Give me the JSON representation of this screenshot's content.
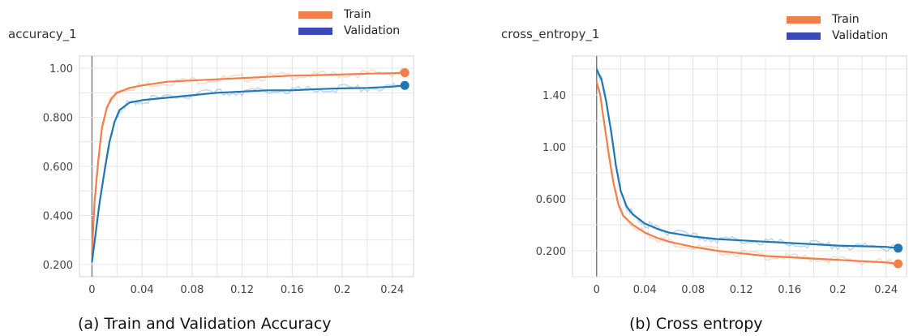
{
  "chart_data": [
    {
      "type": "line",
      "title": "accuracy_1",
      "caption": "(a) Train and Validation Accuracy",
      "legend_position": "top-right",
      "grid": true,
      "xlim": [
        -0.01,
        0.257
      ],
      "ylim": [
        0.15,
        1.05
      ],
      "x_ticks": [
        0,
        0.04,
        0.08,
        0.12,
        0.16,
        0.2,
        0.24
      ],
      "x_tick_labels": [
        "0",
        "0.04",
        "0.08",
        "0.12",
        "0.16",
        "0.2",
        "0.24"
      ],
      "y_ticks": [
        0.2,
        0.4,
        0.6,
        0.8,
        1.0
      ],
      "y_tick_labels": [
        "0.200",
        "0.400",
        "0.600",
        "0.800",
        "1.00"
      ],
      "series": [
        {
          "name": "Train",
          "color": "#f07f4a",
          "x": [
            0,
            0.002,
            0.005,
            0.008,
            0.012,
            0.016,
            0.02,
            0.03,
            0.04,
            0.06,
            0.08,
            0.1,
            0.12,
            0.14,
            0.16,
            0.18,
            0.2,
            0.22,
            0.24,
            0.25
          ],
          "y": [
            0.24,
            0.45,
            0.62,
            0.76,
            0.84,
            0.88,
            0.9,
            0.92,
            0.93,
            0.945,
            0.95,
            0.955,
            0.96,
            0.965,
            0.97,
            0.972,
            0.975,
            0.978,
            0.98,
            0.982
          ]
        },
        {
          "name": "Validation",
          "color": "#1f77b4",
          "x": [
            0,
            0.003,
            0.006,
            0.01,
            0.014,
            0.018,
            0.022,
            0.03,
            0.04,
            0.06,
            0.08,
            0.1,
            0.12,
            0.14,
            0.16,
            0.18,
            0.2,
            0.22,
            0.24,
            0.25
          ],
          "y": [
            0.21,
            0.33,
            0.45,
            0.58,
            0.7,
            0.78,
            0.83,
            0.86,
            0.87,
            0.88,
            0.89,
            0.9,
            0.905,
            0.91,
            0.91,
            0.915,
            0.918,
            0.92,
            0.925,
            0.93
          ]
        }
      ]
    },
    {
      "type": "line",
      "title": "cross_entropy_1",
      "caption": "(b) Cross entropy",
      "legend_position": "top-right",
      "grid": true,
      "xlim": [
        -0.02,
        0.257
      ],
      "ylim": [
        0.0,
        1.7
      ],
      "x_ticks": [
        0,
        0.04,
        0.08,
        0.12,
        0.16,
        0.2,
        0.24
      ],
      "x_tick_labels": [
        "0",
        "0.04",
        "0.08",
        "0.12",
        "0.16",
        "0.2",
        "0.24"
      ],
      "y_ticks": [
        0.2,
        0.6,
        1.0,
        1.4
      ],
      "y_tick_labels": [
        "0.200",
        "0.600",
        "1.00",
        "1.40"
      ],
      "series": [
        {
          "name": "Train",
          "color": "#f07f4a",
          "x": [
            0,
            0.003,
            0.006,
            0.01,
            0.014,
            0.018,
            0.022,
            0.03,
            0.04,
            0.05,
            0.06,
            0.08,
            0.1,
            0.12,
            0.14,
            0.16,
            0.18,
            0.2,
            0.22,
            0.24,
            0.25
          ],
          "y": [
            1.5,
            1.4,
            1.2,
            0.95,
            0.72,
            0.56,
            0.47,
            0.4,
            0.34,
            0.3,
            0.27,
            0.23,
            0.2,
            0.18,
            0.16,
            0.15,
            0.14,
            0.13,
            0.12,
            0.11,
            0.1
          ]
        },
        {
          "name": "Validation",
          "color": "#1f77b4",
          "x": [
            0,
            0.004,
            0.008,
            0.012,
            0.016,
            0.02,
            0.025,
            0.03,
            0.04,
            0.05,
            0.06,
            0.08,
            0.1,
            0.12,
            0.14,
            0.16,
            0.18,
            0.2,
            0.22,
            0.24,
            0.25
          ],
          "y": [
            1.6,
            1.52,
            1.35,
            1.12,
            0.86,
            0.66,
            0.54,
            0.48,
            0.41,
            0.37,
            0.34,
            0.31,
            0.29,
            0.28,
            0.27,
            0.26,
            0.25,
            0.24,
            0.235,
            0.23,
            0.22
          ]
        }
      ]
    }
  ]
}
